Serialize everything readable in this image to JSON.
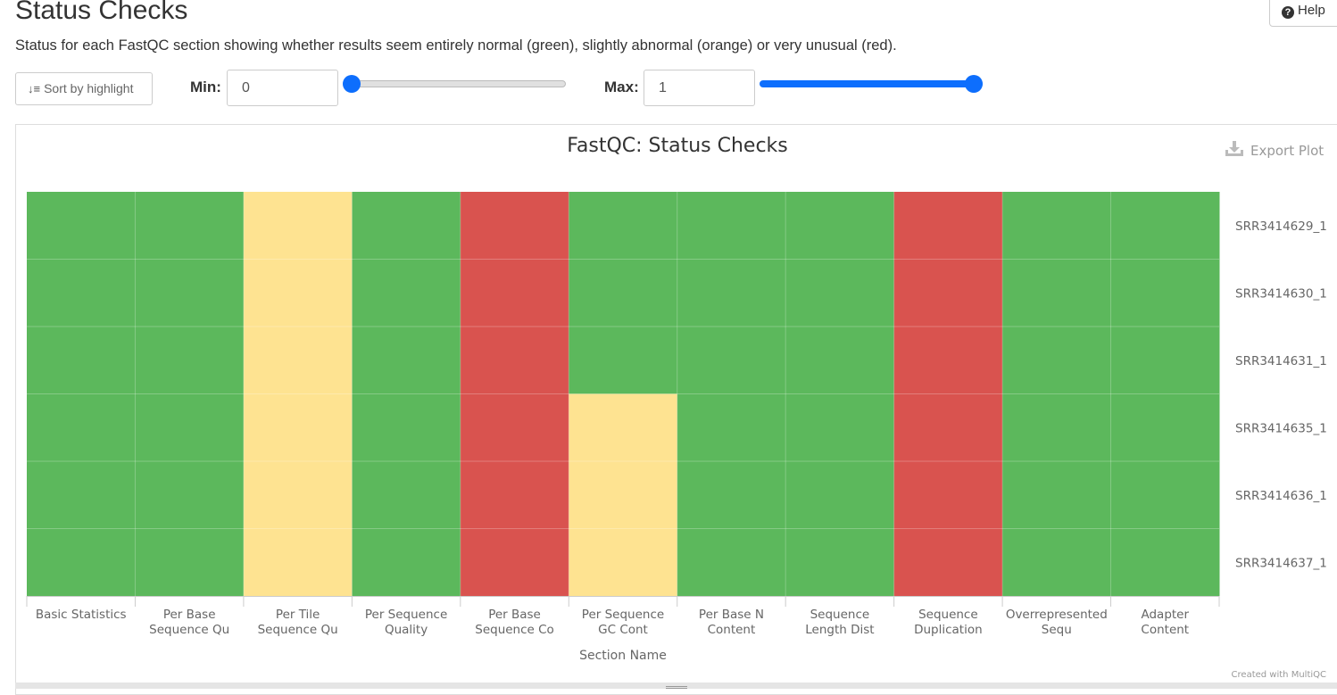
{
  "header": {
    "title": "Status Checks",
    "help_label": "Help",
    "description": "Status for each FastQC section showing whether results seem entirely normal (green), slightly abnormal (orange) or very unusual (red)."
  },
  "controls": {
    "sort_label": "Sort by highlight",
    "min_label": "Min:",
    "min_value": "0",
    "max_label": "Max:",
    "max_value": "1",
    "min_slider_value": 0,
    "max_slider_value": 1,
    "slider_color": "#0d6efd"
  },
  "plot": {
    "export_label": "Export Plot",
    "credit": "Created with MultiQC"
  },
  "chart_data": {
    "type": "heatmap",
    "title": "FastQC: Status Checks",
    "xlabel": "Section Name",
    "ylabel": "",
    "x_categories": [
      [
        "Basic Statistics"
      ],
      [
        "Per Base",
        "Sequence Qu"
      ],
      [
        "Per Tile",
        "Sequence Qu"
      ],
      [
        "Per Sequence",
        "Quality"
      ],
      [
        "Per Base",
        "Sequence Co"
      ],
      [
        "Per Sequence",
        "GC Cont"
      ],
      [
        "Per Base N",
        "Content"
      ],
      [
        "Sequence",
        "Length Dist"
      ],
      [
        "Sequence",
        "Duplication"
      ],
      [
        "Overrepresented",
        "Sequ"
      ],
      [
        "Adapter",
        "Content"
      ]
    ],
    "y_categories": [
      "SRR3414629_1",
      "SRR3414630_1",
      "SRR3414631_1",
      "SRR3414635_1",
      "SRR3414636_1",
      "SRR3414637_1"
    ],
    "values": [
      [
        1,
        1,
        0.5,
        1,
        0,
        1,
        1,
        1,
        0,
        1,
        1
      ],
      [
        1,
        1,
        0.5,
        1,
        0,
        1,
        1,
        1,
        0,
        1,
        1
      ],
      [
        1,
        1,
        0.5,
        1,
        0,
        1,
        1,
        1,
        0,
        1,
        1
      ],
      [
        1,
        1,
        0.5,
        1,
        0,
        0.5,
        1,
        1,
        0,
        1,
        1
      ],
      [
        1,
        1,
        0.5,
        1,
        0,
        0.5,
        1,
        1,
        0,
        1,
        1
      ],
      [
        1,
        1,
        0.5,
        1,
        0,
        0.5,
        1,
        1,
        0,
        1,
        1
      ]
    ],
    "color_scale": {
      "0": "#d9534f",
      "0.5": "#fee391",
      "1": "#5cb85c"
    }
  }
}
